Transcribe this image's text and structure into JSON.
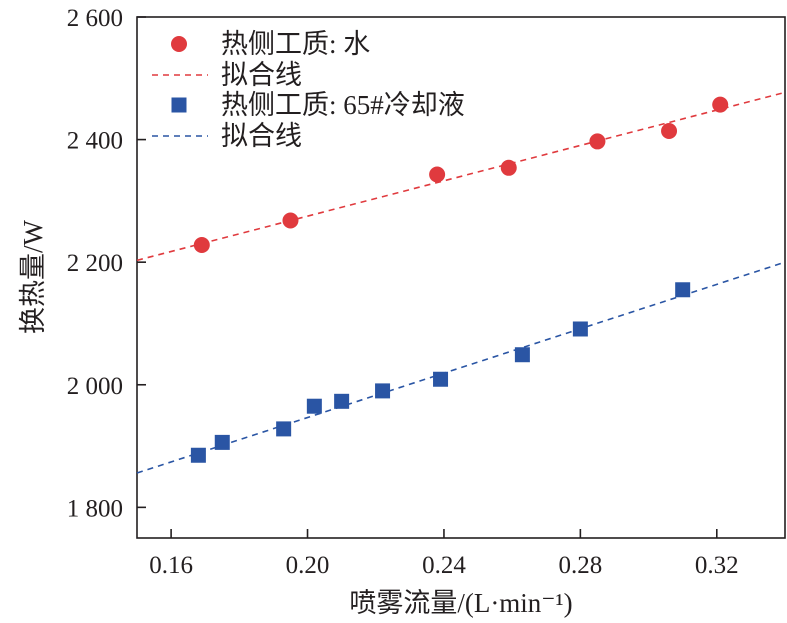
{
  "chart_data": {
    "type": "scatter",
    "xlabel": "喷雾流量/(L·min⁻¹)",
    "ylabel": "换热量/W",
    "xlim": [
      0.15,
      0.34
    ],
    "ylim": [
      1750,
      2600
    ],
    "x_ticks": [
      0.16,
      0.2,
      0.24,
      0.28,
      0.32
    ],
    "x_tick_labels": [
      "0.16",
      "0.20",
      "0.24",
      "0.28",
      "0.32"
    ],
    "y_ticks": [
      1800,
      2000,
      2200,
      2400,
      2600
    ],
    "y_tick_labels": [
      "1 800",
      "2 000",
      "2 200",
      "2 400",
      "2 600"
    ],
    "grid": false,
    "legend_position": "top-left",
    "series": [
      {
        "name": "热侧工质: 水",
        "marker": "circle",
        "color": "#e03a3e",
        "x": [
          0.169,
          0.195,
          0.238,
          0.259,
          0.285,
          0.306,
          0.321
        ],
        "y": [
          2228,
          2268,
          2343,
          2354,
          2397,
          2414,
          2457
        ]
      },
      {
        "name": "拟合线",
        "style": "dashed",
        "color": "#e03a3e",
        "x": [
          0.15,
          0.34
        ],
        "y": [
          2203,
          2477
        ]
      },
      {
        "name": "热侧工质: 65#冷却液",
        "marker": "square",
        "color": "#2a55a4",
        "x": [
          0.168,
          0.175,
          0.193,
          0.202,
          0.21,
          0.222,
          0.239,
          0.263,
          0.28,
          0.31
        ],
        "y": [
          1885,
          1906,
          1928,
          1965,
          1973,
          1990,
          2009,
          2049,
          2091,
          2155
        ]
      },
      {
        "name": "拟合线",
        "style": "dashed",
        "color": "#2a55a4",
        "x": [
          0.15,
          0.34
        ],
        "y": [
          1856,
          2200
        ]
      }
    ]
  }
}
